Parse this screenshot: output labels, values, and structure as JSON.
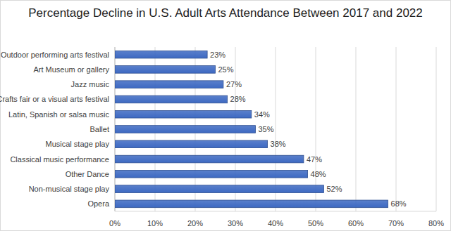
{
  "chart_data": {
    "type": "bar",
    "orientation": "horizontal",
    "title": "Percentage Decline in U.S. Adult Arts Attendance Between 2017 and 2022",
    "categories": [
      "Outdoor performing arts festival",
      "Art Museum or gallery",
      "Jazz music",
      "Crafts fair or a visual arts festival",
      "Latin, Spanish or salsa music",
      "Ballet",
      "Musical stage play",
      "Classical music performance",
      "Other Dance",
      "Non-musical stage play",
      "Opera"
    ],
    "values": [
      23,
      25,
      27,
      28,
      34,
      35,
      38,
      47,
      48,
      52,
      68
    ],
    "value_labels": [
      "23%",
      "25%",
      "27%",
      "28%",
      "34%",
      "35%",
      "38%",
      "47%",
      "48%",
      "52%",
      "68%"
    ],
    "data_labels": true,
    "color": "#3d69c2",
    "xlim": [
      0,
      80
    ],
    "xticks": [
      {
        "value": 0,
        "label": "0%"
      },
      {
        "value": 10,
        "label": "10%"
      },
      {
        "value": 20,
        "label": "20%"
      },
      {
        "value": 30,
        "label": "30%"
      },
      {
        "value": 40,
        "label": "40%"
      },
      {
        "value": 50,
        "label": "50%"
      },
      {
        "value": 60,
        "label": "60%"
      },
      {
        "value": 70,
        "label": "70%"
      },
      {
        "value": 80,
        "label": "80%"
      }
    ],
    "grid": true
  }
}
